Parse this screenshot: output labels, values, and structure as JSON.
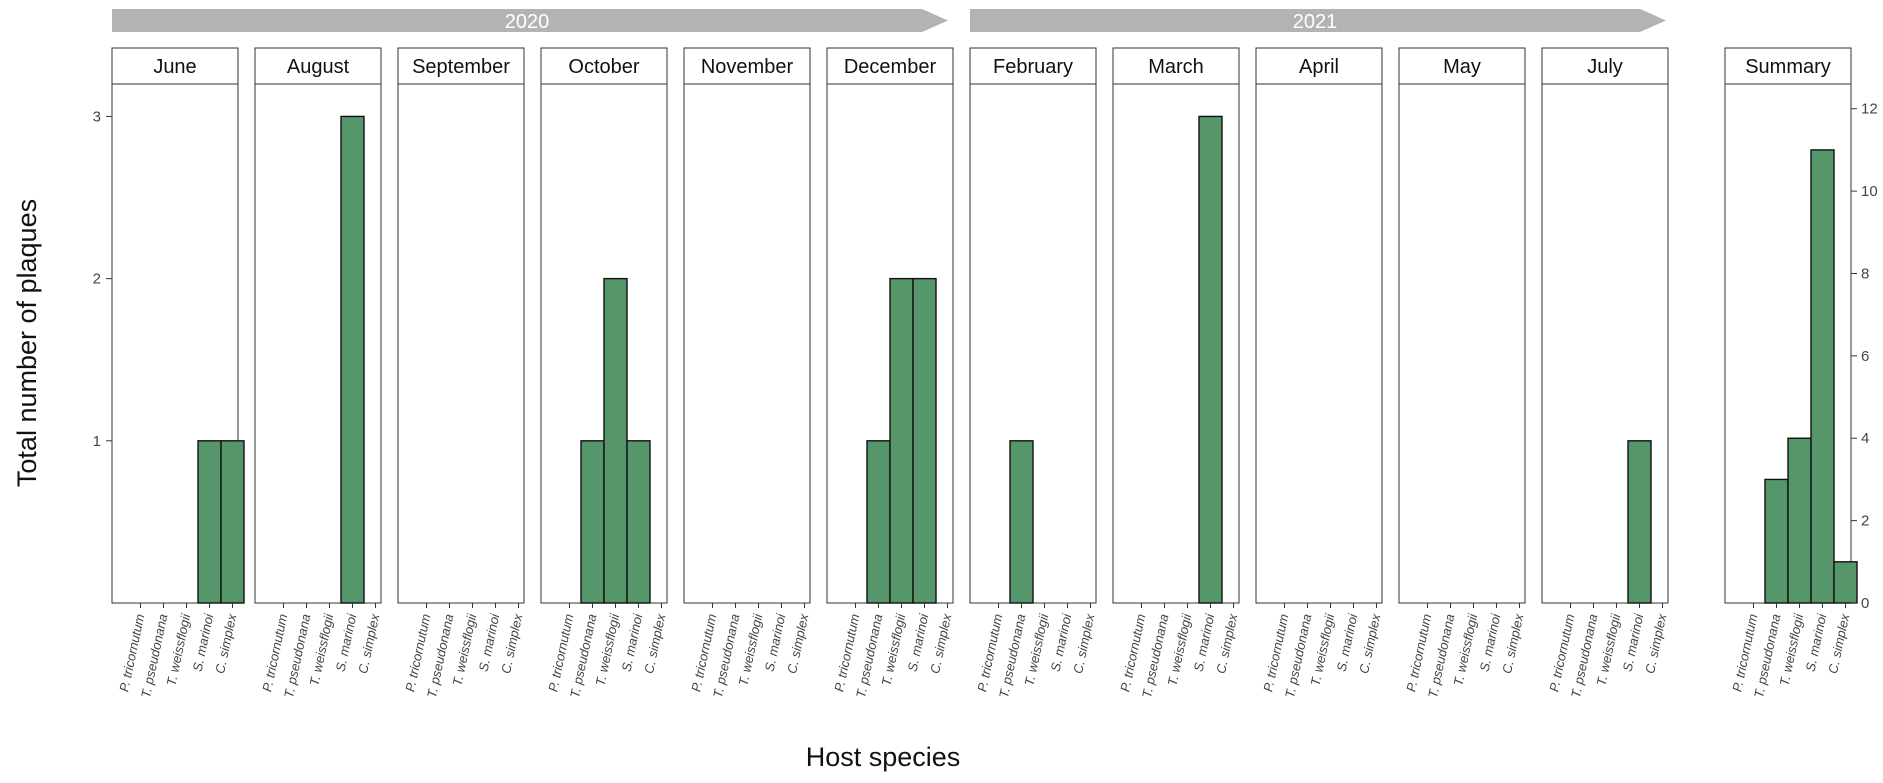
{
  "chart_data": {
    "type": "bar",
    "xlabel": "Host species",
    "ylabel": "Total number of plaques",
    "categories": [
      "P. tricornutum",
      "T. pseudonana",
      "T. weissflogii",
      "S. marinoi",
      "C. simplex"
    ],
    "bar_color": "#55976a",
    "years": [
      {
        "label": "2020",
        "months": [
          "June",
          "August",
          "September",
          "October",
          "November",
          "December"
        ]
      },
      {
        "label": "2021",
        "months": [
          "February",
          "March",
          "April",
          "May",
          "July"
        ]
      }
    ],
    "panels": [
      {
        "label": "June",
        "values": [
          0,
          0,
          0,
          1,
          1
        ]
      },
      {
        "label": "August",
        "values": [
          0,
          0,
          0,
          3,
          0
        ]
      },
      {
        "label": "September",
        "values": [
          0,
          0,
          0,
          0,
          0
        ]
      },
      {
        "label": "October",
        "values": [
          0,
          1,
          2,
          1,
          0
        ]
      },
      {
        "label": "November",
        "values": [
          0,
          0,
          0,
          0,
          0
        ]
      },
      {
        "label": "December",
        "values": [
          0,
          1,
          2,
          2,
          0
        ]
      },
      {
        "label": "February",
        "values": [
          0,
          1,
          0,
          0,
          0
        ]
      },
      {
        "label": "March",
        "values": [
          0,
          0,
          0,
          3,
          0
        ]
      },
      {
        "label": "April",
        "values": [
          0,
          0,
          0,
          0,
          0
        ]
      },
      {
        "label": "May",
        "values": [
          0,
          0,
          0,
          0,
          0
        ]
      },
      {
        "label": "July",
        "values": [
          0,
          0,
          0,
          1,
          0
        ]
      }
    ],
    "monthly_axis": {
      "ylim": [
        0,
        3.2
      ],
      "ticks": [
        1,
        2,
        3
      ],
      "side": "left"
    },
    "summary": {
      "label": "Summary",
      "values": [
        0,
        3,
        4,
        11,
        1
      ],
      "axis": {
        "ylim": [
          0,
          12.6
        ],
        "ticks": [
          0,
          2,
          4,
          6,
          8,
          10,
          12
        ],
        "side": "right"
      }
    },
    "grid": false,
    "legend": "none"
  }
}
